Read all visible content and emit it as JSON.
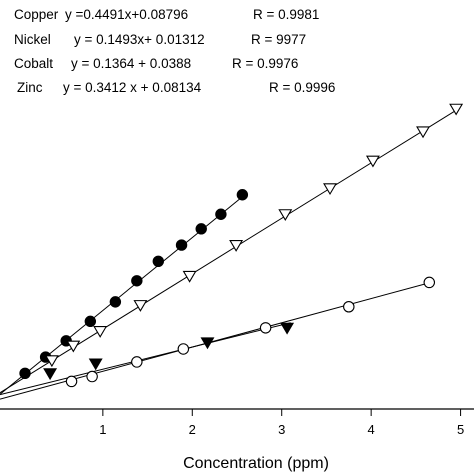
{
  "chart_data": {
    "type": "scatter",
    "title": "",
    "xlabel": "Concentration (ppm)",
    "ylabel": "",
    "xlim": [
      -0.15,
      5.15
    ],
    "ylim": [
      -0.07,
      2.45
    ],
    "x_ticks": [
      1,
      2,
      3,
      4,
      5
    ],
    "legend_position": "top-left",
    "equations": [
      {
        "name": "Copper",
        "equation": "y =0.4491x+0.08796",
        "r": "R = 0.9981"
      },
      {
        "name": "Nickel",
        "equation": "y = 0.1493x+ 0.01312",
        "r": "R = 9977"
      },
      {
        "name": "Cobalt",
        "equation": "y = 0.1364 + 0.0388",
        "r": "R = 0.9976"
      },
      {
        "name": "Zinc",
        "equation": "y = 0.3412 x + 0.08134",
        "r": "R = 0.9996"
      }
    ],
    "series": [
      {
        "name": "Copper",
        "marker": "filled-circle",
        "fit": {
          "slope": 0.4491,
          "intercept": 0.08796
        },
        "points": [
          {
            "x": 0.13,
            "y": 0.15
          },
          {
            "x": 0.36,
            "y": 0.25
          },
          {
            "x": 0.59,
            "y": 0.35
          },
          {
            "x": 0.86,
            "y": 0.47
          },
          {
            "x": 1.14,
            "y": 0.59
          },
          {
            "x": 1.38,
            "y": 0.72
          },
          {
            "x": 1.62,
            "y": 0.84
          },
          {
            "x": 1.88,
            "y": 0.94
          },
          {
            "x": 2.1,
            "y": 1.04
          },
          {
            "x": 2.32,
            "y": 1.13
          },
          {
            "x": 2.56,
            "y": 1.25
          }
        ]
      },
      {
        "name": "Zinc",
        "marker": "open-triangle-down",
        "fit": {
          "slope": 0.3412,
          "intercept": 0.08134
        },
        "points": [
          {
            "x": 0.43,
            "y": 0.23
          },
          {
            "x": 0.67,
            "y": 0.32
          },
          {
            "x": 0.97,
            "y": 0.41
          },
          {
            "x": 1.42,
            "y": 0.57
          },
          {
            "x": 1.97,
            "y": 0.75
          },
          {
            "x": 2.49,
            "y": 0.94
          },
          {
            "x": 3.04,
            "y": 1.13
          },
          {
            "x": 3.54,
            "y": 1.29
          },
          {
            "x": 4.02,
            "y": 1.46
          },
          {
            "x": 4.58,
            "y": 1.64
          },
          {
            "x": 4.95,
            "y": 1.78
          }
        ]
      },
      {
        "name": "Nickel",
        "marker": "open-circle",
        "fit": {
          "slope": 0.1493,
          "intercept": 0.01312
        },
        "points": [
          {
            "x": 0.65,
            "y": 0.1
          },
          {
            "x": 0.88,
            "y": 0.13
          },
          {
            "x": 1.38,
            "y": 0.22
          },
          {
            "x": 1.9,
            "y": 0.3
          },
          {
            "x": 2.82,
            "y": 0.43
          },
          {
            "x": 3.75,
            "y": 0.56
          },
          {
            "x": 4.65,
            "y": 0.71
          }
        ]
      },
      {
        "name": "Cobalt",
        "marker": "filled-triangle-down",
        "fit": {
          "slope": 0.1364,
          "intercept": 0.0388
        },
        "points": [
          {
            "x": 0.41,
            "y": 0.15
          },
          {
            "x": 0.92,
            "y": 0.21
          },
          {
            "x": 2.17,
            "y": 0.34
          },
          {
            "x": 3.06,
            "y": 0.43
          }
        ]
      }
    ]
  }
}
